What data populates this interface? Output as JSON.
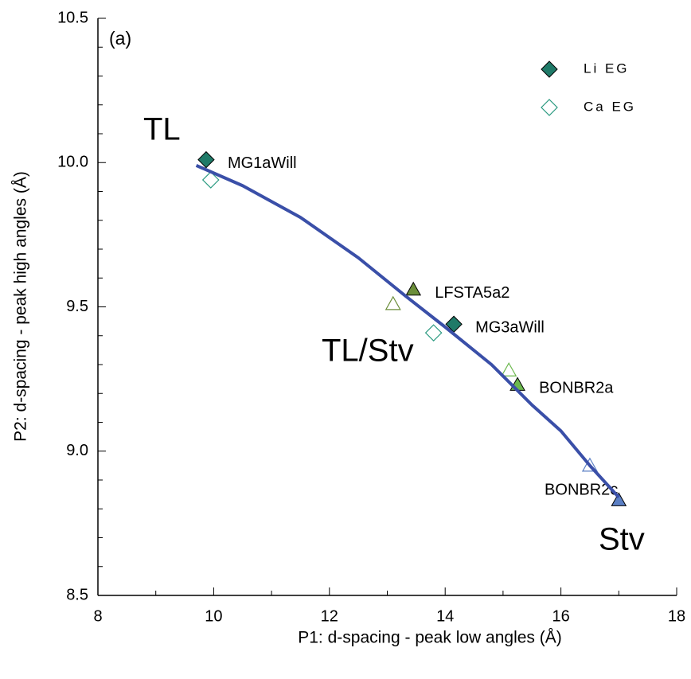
{
  "chart_data": {
    "type": "scatter",
    "xlabel": "P1: d-spacing - peak low angles (Å)",
    "ylabel": "P2: d-spacing - peak high angles (Å)",
    "xlim": [
      8,
      18
    ],
    "ylim": [
      8.5,
      10.5
    ],
    "xticks": [
      8,
      10,
      12,
      14,
      16,
      18
    ],
    "yticks": [
      8.5,
      {
        "value": 9,
        "label": "9.0"
      },
      9.5,
      {
        "value": 10,
        "label": "10.0"
      },
      10.5
    ],
    "minor_xticks": [
      9,
      11,
      13,
      15,
      17
    ],
    "minor_yticks": [
      8.6,
      8.7,
      8.8,
      8.9,
      9.1,
      9.2,
      9.3,
      9.4,
      9.6,
      9.7,
      9.8,
      9.9,
      10.1,
      10.2,
      10.3,
      10.4
    ],
    "annotations": [
      "(a)",
      "TL",
      "TL/Stv",
      "Stv"
    ],
    "series": [
      {
        "name": "Li EG",
        "marker": "diamond",
        "filled": true,
        "color": "#1f7a68",
        "x": [
          9.87,
          14.15
        ],
        "y": [
          10.01,
          9.44
        ],
        "labels": [
          "MG1aWill",
          "MG3aWill"
        ]
      },
      {
        "name": "Ca EG",
        "marker": "diamond",
        "filled": false,
        "color": "#2a9a80",
        "x": [
          9.95,
          13.8
        ],
        "y": [
          9.94,
          9.41
        ]
      },
      {
        "marker": "triangle",
        "filled": true,
        "colors": [
          "#6b8e3a",
          "#6cb84e",
          "#5b7fc4"
        ],
        "x": [
          13.45,
          15.25,
          17.0
        ],
        "y": [
          9.56,
          9.23,
          8.83
        ],
        "labels": [
          "LFSTA5a2",
          "BONBR2a",
          "BONBR2c"
        ]
      },
      {
        "marker": "triangle",
        "filled": false,
        "colors": [
          "#6b8e3a",
          "#6cb84e",
          "#5b7fc4"
        ],
        "x": [
          13.1,
          15.1,
          16.5
        ],
        "y": [
          9.51,
          9.28,
          8.95
        ]
      },
      {
        "marker": "line",
        "color": "#3a4fa8",
        "x": [
          9.7,
          10.5,
          11.5,
          12.5,
          13.3,
          14.0,
          14.8,
          15.5,
          16.0,
          16.5,
          17.0
        ],
        "y": [
          9.99,
          9.92,
          9.81,
          9.67,
          9.54,
          9.43,
          9.3,
          9.16,
          9.07,
          8.95,
          8.84
        ]
      }
    ]
  }
}
